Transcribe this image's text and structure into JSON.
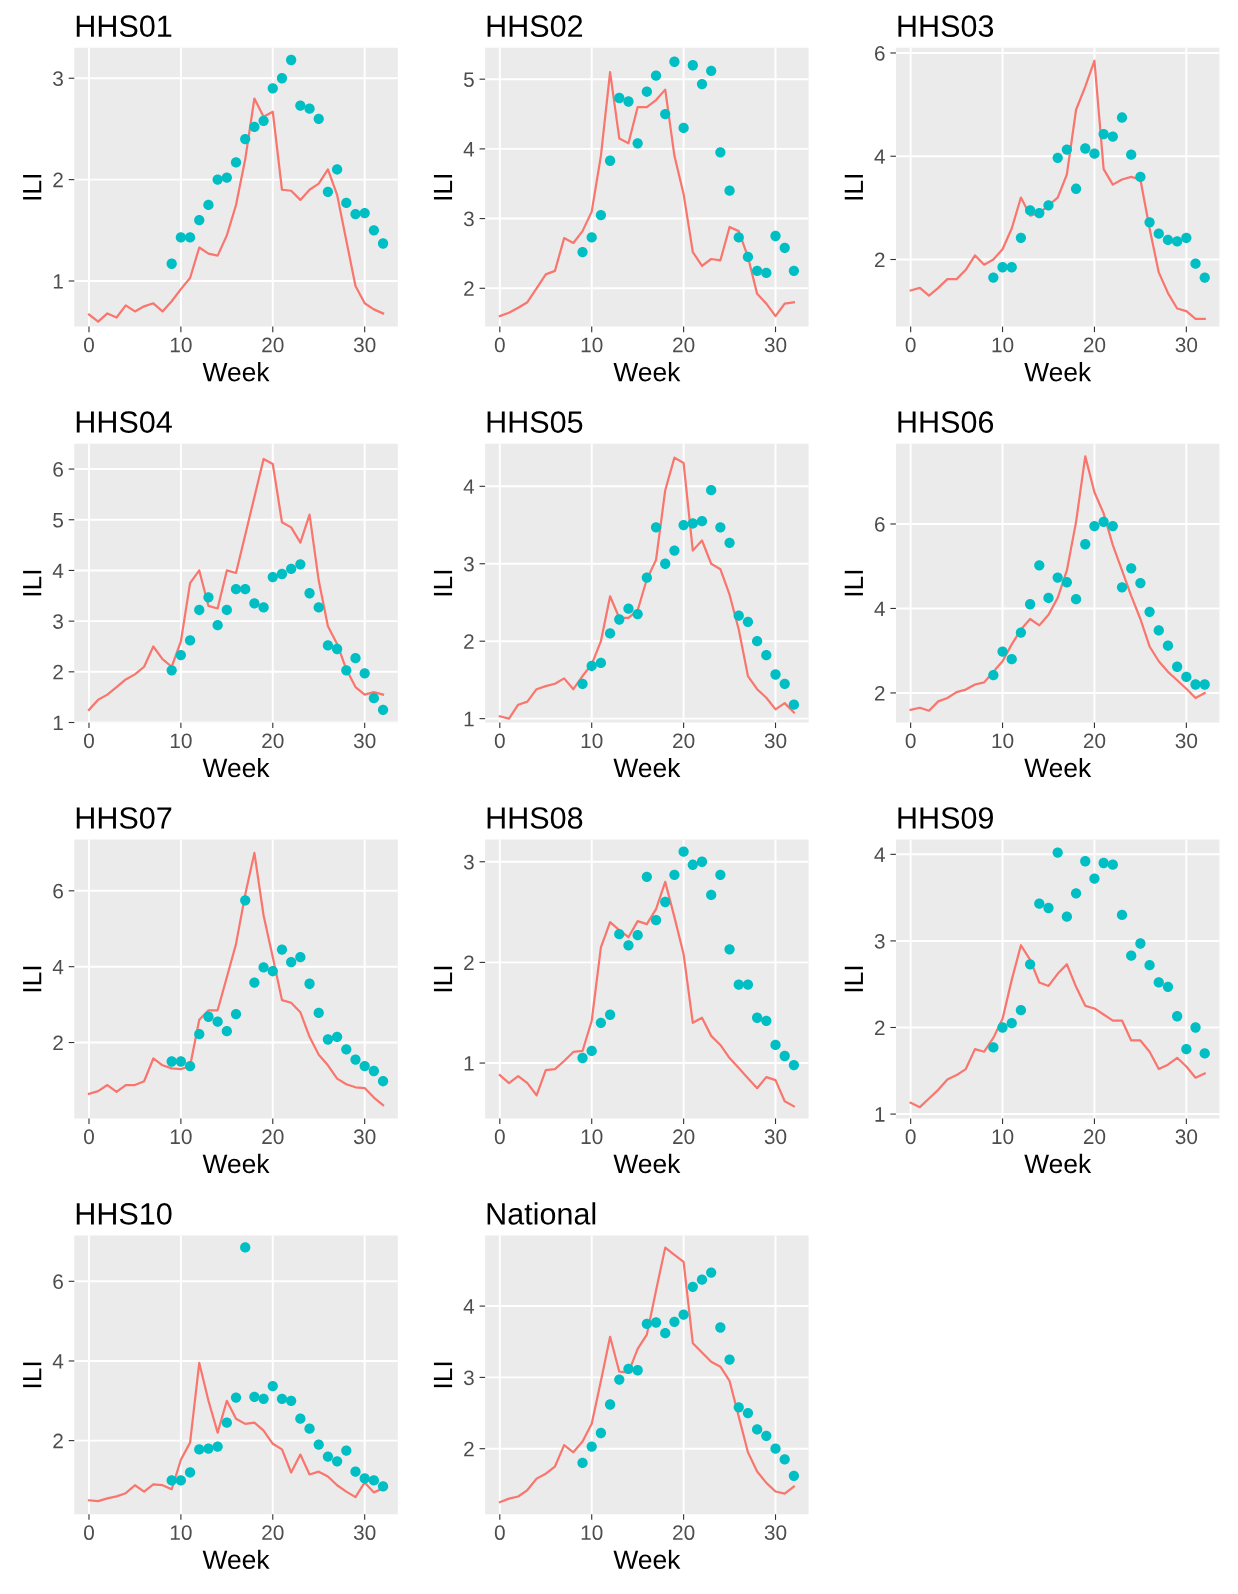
{
  "chart_data": [
    {
      "type": "line",
      "title": "HHS01",
      "xlabel": "Week",
      "ylabel": "ILI",
      "xlim": [
        -1.6,
        33.6
      ],
      "xticks": [
        0,
        10,
        20,
        30
      ],
      "ylim": [
        0.55,
        3.3
      ],
      "yticks": [
        1,
        2,
        3
      ],
      "grid": true,
      "series": [
        {
          "type": "line",
          "color": "#f8766d",
          "x": [
            0,
            1,
            2,
            3,
            4,
            5,
            6,
            7,
            8,
            9,
            10,
            11,
            12,
            13,
            14,
            15,
            16,
            17,
            18,
            19,
            20,
            21,
            22,
            23,
            24,
            25,
            26,
            27,
            28,
            29,
            30,
            31,
            32
          ],
          "values": [
            0.67,
            0.6,
            0.68,
            0.64,
            0.76,
            0.7,
            0.75,
            0.78,
            0.7,
            0.8,
            0.92,
            1.03,
            1.33,
            1.27,
            1.25,
            1.45,
            1.75,
            2.2,
            2.8,
            2.62,
            2.67,
            1.9,
            1.89,
            1.8,
            1.9,
            1.96,
            2.1,
            1.85,
            1.4,
            0.95,
            0.78,
            0.72,
            0.68
          ]
        },
        {
          "type": "scatter",
          "color": "#00bfc4",
          "marker": "circle",
          "x": [
            9,
            10,
            11,
            12,
            13,
            14,
            15,
            16,
            17,
            18,
            19,
            20,
            21,
            22,
            23,
            24,
            25,
            26,
            27,
            28,
            29,
            30,
            31,
            32
          ],
          "values": [
            1.17,
            1.43,
            1.43,
            1.6,
            1.75,
            2.0,
            2.02,
            2.17,
            2.4,
            2.52,
            2.58,
            2.9,
            3.0,
            3.18,
            2.73,
            2.7,
            2.6,
            1.88,
            2.1,
            1.77,
            1.66,
            1.67,
            1.5,
            1.37
          ]
        }
      ]
    },
    {
      "type": "line",
      "title": "HHS02",
      "xlabel": "Week",
      "ylabel": "ILI",
      "xlim": [
        -1.6,
        33.6
      ],
      "xticks": [
        0,
        10,
        20,
        30
      ],
      "ylim": [
        1.45,
        5.45
      ],
      "yticks": [
        2,
        3,
        4,
        5
      ],
      "grid": true,
      "series": [
        {
          "type": "line",
          "color": "#f8766d",
          "x": [
            0,
            1,
            2,
            3,
            4,
            5,
            6,
            7,
            8,
            9,
            10,
            11,
            12,
            13,
            14,
            15,
            16,
            17,
            18,
            19,
            20,
            21,
            22,
            23,
            24,
            25,
            26,
            27,
            28,
            29,
            30,
            31,
            32
          ],
          "values": [
            1.6,
            1.65,
            1.72,
            1.8,
            2.0,
            2.2,
            2.25,
            2.72,
            2.65,
            2.82,
            3.1,
            3.9,
            5.1,
            4.15,
            4.08,
            4.6,
            4.6,
            4.7,
            4.85,
            3.9,
            3.35,
            2.52,
            2.32,
            2.42,
            2.4,
            2.88,
            2.82,
            2.45,
            1.92,
            1.78,
            1.6,
            1.78,
            1.8
          ]
        },
        {
          "type": "scatter",
          "color": "#00bfc4",
          "marker": "circle",
          "x": [
            9,
            10,
            11,
            12,
            13,
            14,
            15,
            16,
            17,
            18,
            19,
            20,
            21,
            22,
            23,
            24,
            25,
            26,
            27,
            28,
            29,
            30,
            31,
            32
          ],
          "values": [
            2.52,
            2.73,
            3.05,
            3.83,
            4.73,
            4.68,
            4.08,
            4.82,
            5.05,
            4.5,
            5.25,
            4.3,
            5.2,
            4.93,
            5.12,
            3.95,
            3.4,
            2.73,
            2.45,
            2.25,
            2.22,
            2.75,
            2.58,
            2.25
          ]
        }
      ]
    },
    {
      "type": "line",
      "title": "HHS03",
      "xlabel": "Week",
      "ylabel": "ILI",
      "xlim": [
        -1.6,
        33.6
      ],
      "xticks": [
        0,
        10,
        20,
        30
      ],
      "ylim": [
        0.7,
        6.1
      ],
      "yticks": [
        2,
        4,
        6
      ],
      "grid": true,
      "series": [
        {
          "type": "line",
          "color": "#f8766d",
          "x": [
            0,
            1,
            2,
            3,
            4,
            5,
            6,
            7,
            8,
            9,
            10,
            11,
            12,
            13,
            14,
            15,
            16,
            17,
            18,
            19,
            20,
            21,
            22,
            23,
            24,
            25,
            26,
            27,
            28,
            29,
            30,
            31,
            32
          ],
          "values": [
            1.4,
            1.45,
            1.3,
            1.45,
            1.62,
            1.62,
            1.8,
            2.08,
            1.9,
            2.0,
            2.2,
            2.6,
            3.2,
            2.85,
            2.9,
            3.05,
            3.2,
            3.65,
            4.9,
            5.35,
            5.85,
            3.75,
            3.45,
            3.55,
            3.6,
            3.55,
            2.6,
            1.75,
            1.35,
            1.05,
            1.0,
            0.85,
            0.85
          ]
        },
        {
          "type": "scatter",
          "color": "#00bfc4",
          "marker": "circle",
          "x": [
            9,
            10,
            11,
            12,
            13,
            14,
            15,
            16,
            17,
            18,
            19,
            20,
            21,
            22,
            23,
            24,
            25,
            26,
            27,
            28,
            29,
            30,
            31,
            32
          ],
          "values": [
            1.65,
            1.85,
            1.85,
            2.42,
            2.95,
            2.9,
            3.05,
            3.97,
            4.13,
            3.37,
            4.15,
            4.05,
            4.43,
            4.38,
            4.75,
            4.03,
            3.6,
            2.72,
            2.5,
            2.38,
            2.35,
            2.42,
            1.92,
            1.65
          ]
        }
      ]
    },
    {
      "type": "line",
      "title": "HHS04",
      "xlabel": "Week",
      "ylabel": "ILI",
      "xlim": [
        -1.6,
        33.6
      ],
      "xticks": [
        0,
        10,
        20,
        30
      ],
      "ylim": [
        1.0,
        6.5
      ],
      "yticks": [
        1,
        2,
        3,
        4,
        5,
        6
      ],
      "grid": true,
      "series": [
        {
          "type": "line",
          "color": "#f8766d",
          "x": [
            0,
            1,
            2,
            3,
            4,
            5,
            6,
            7,
            8,
            9,
            10,
            11,
            12,
            13,
            14,
            15,
            16,
            17,
            18,
            19,
            20,
            21,
            22,
            23,
            24,
            25,
            26,
            27,
            28,
            29,
            30,
            31,
            32
          ],
          "values": [
            1.25,
            1.45,
            1.55,
            1.7,
            1.85,
            1.95,
            2.1,
            2.5,
            2.25,
            2.1,
            2.6,
            3.75,
            4.0,
            3.3,
            3.25,
            4.0,
            3.95,
            4.7,
            5.45,
            6.2,
            6.1,
            4.95,
            4.85,
            4.55,
            5.1,
            3.8,
            2.9,
            2.55,
            2.05,
            1.7,
            1.55,
            1.6,
            1.55
          ]
        },
        {
          "type": "scatter",
          "color": "#00bfc4",
          "marker": "circle",
          "x": [
            9,
            10,
            11,
            12,
            13,
            14,
            15,
            16,
            17,
            18,
            19,
            20,
            21,
            22,
            23,
            24,
            25,
            26,
            27,
            28,
            29,
            30,
            31,
            32
          ],
          "values": [
            2.03,
            2.33,
            2.62,
            3.22,
            3.47,
            2.92,
            3.22,
            3.63,
            3.63,
            3.35,
            3.27,
            3.87,
            3.93,
            4.03,
            4.12,
            3.55,
            3.27,
            2.52,
            2.45,
            2.03,
            2.27,
            1.97,
            1.48,
            1.25
          ]
        }
      ]
    },
    {
      "type": "line",
      "title": "HHS05",
      "xlabel": "Week",
      "ylabel": "ILI",
      "xlim": [
        -1.6,
        33.6
      ],
      "xticks": [
        0,
        10,
        20,
        30
      ],
      "ylim": [
        0.95,
        4.55
      ],
      "yticks": [
        1,
        2,
        3,
        4
      ],
      "grid": true,
      "series": [
        {
          "type": "line",
          "color": "#f8766d",
          "x": [
            0,
            1,
            2,
            3,
            4,
            5,
            6,
            7,
            8,
            9,
            10,
            11,
            12,
            13,
            14,
            15,
            16,
            17,
            18,
            19,
            20,
            21,
            22,
            23,
            24,
            25,
            26,
            27,
            28,
            29,
            30,
            31,
            32
          ],
          "values": [
            1.03,
            1.0,
            1.18,
            1.22,
            1.38,
            1.42,
            1.45,
            1.52,
            1.38,
            1.55,
            1.7,
            2.0,
            2.58,
            2.3,
            2.3,
            2.4,
            2.8,
            3.05,
            3.95,
            4.37,
            4.3,
            3.17,
            3.3,
            3.0,
            2.93,
            2.6,
            2.15,
            1.55,
            1.38,
            1.27,
            1.12,
            1.2,
            1.08
          ]
        },
        {
          "type": "scatter",
          "color": "#00bfc4",
          "marker": "circle",
          "x": [
            9,
            10,
            11,
            12,
            13,
            14,
            15,
            16,
            17,
            18,
            19,
            20,
            21,
            22,
            23,
            24,
            25,
            26,
            27,
            28,
            29,
            30,
            31,
            32
          ],
          "values": [
            1.45,
            1.68,
            1.72,
            2.1,
            2.28,
            2.42,
            2.35,
            2.82,
            3.47,
            3.0,
            3.17,
            3.5,
            3.52,
            3.55,
            3.95,
            3.47,
            3.27,
            2.33,
            2.25,
            2.0,
            1.82,
            1.57,
            1.45,
            1.18
          ]
        }
      ]
    },
    {
      "type": "line",
      "title": "HHS06",
      "xlabel": "Week",
      "ylabel": "ILI",
      "xlim": [
        -1.6,
        33.6
      ],
      "xticks": [
        0,
        10,
        20,
        30
      ],
      "ylim": [
        1.3,
        7.9
      ],
      "yticks": [
        2,
        4,
        6
      ],
      "grid": true,
      "series": [
        {
          "type": "line",
          "color": "#f8766d",
          "x": [
            0,
            1,
            2,
            3,
            4,
            5,
            6,
            7,
            8,
            9,
            10,
            11,
            12,
            13,
            14,
            15,
            16,
            17,
            18,
            19,
            20,
            21,
            22,
            23,
            24,
            25,
            26,
            27,
            28,
            29,
            30,
            31,
            32
          ],
          "values": [
            1.6,
            1.65,
            1.58,
            1.8,
            1.88,
            2.02,
            2.08,
            2.2,
            2.25,
            2.5,
            2.75,
            3.15,
            3.5,
            3.75,
            3.6,
            3.85,
            4.25,
            4.9,
            6.05,
            7.6,
            6.75,
            6.25,
            5.5,
            4.9,
            4.3,
            3.75,
            3.1,
            2.75,
            2.5,
            2.3,
            2.1,
            1.88,
            2.0
          ]
        },
        {
          "type": "scatter",
          "color": "#00bfc4",
          "marker": "circle",
          "x": [
            9,
            10,
            11,
            12,
            13,
            14,
            15,
            16,
            17,
            18,
            19,
            20,
            21,
            22,
            23,
            24,
            25,
            26,
            27,
            28,
            29,
            30,
            31,
            32
          ],
          "values": [
            2.42,
            2.98,
            2.8,
            3.43,
            4.1,
            5.02,
            4.25,
            4.73,
            4.62,
            4.22,
            5.52,
            5.95,
            6.05,
            5.95,
            4.5,
            4.95,
            4.6,
            3.92,
            3.48,
            3.12,
            2.62,
            2.38,
            2.2,
            2.2
          ]
        }
      ]
    },
    {
      "type": "line",
      "title": "HHS07",
      "xlabel": "Week",
      "ylabel": "ILI",
      "xlim": [
        -1.6,
        33.6
      ],
      "xticks": [
        0,
        10,
        20,
        30
      ],
      "ylim": [
        0.0,
        7.35
      ],
      "yticks": [
        2,
        4,
        6
      ],
      "grid": true,
      "series": [
        {
          "type": "line",
          "color": "#f8766d",
          "x": [
            0,
            1,
            2,
            3,
            4,
            5,
            6,
            7,
            8,
            9,
            10,
            11,
            12,
            13,
            14,
            15,
            16,
            17,
            18,
            19,
            20,
            21,
            22,
            23,
            24,
            25,
            26,
            27,
            28,
            29,
            30,
            31,
            32
          ],
          "values": [
            0.65,
            0.72,
            0.88,
            0.7,
            0.88,
            0.88,
            0.98,
            1.58,
            1.4,
            1.32,
            1.3,
            1.38,
            2.6,
            2.85,
            2.85,
            3.72,
            4.6,
            5.9,
            7.0,
            5.35,
            4.25,
            3.12,
            3.05,
            2.8,
            2.15,
            1.68,
            1.4,
            1.05,
            0.9,
            0.82,
            0.8,
            0.55,
            0.35
          ]
        },
        {
          "type": "scatter",
          "color": "#00bfc4",
          "marker": "circle",
          "x": [
            9,
            10,
            11,
            12,
            13,
            14,
            15,
            16,
            17,
            18,
            19,
            20,
            21,
            22,
            23,
            24,
            25,
            26,
            27,
            28,
            29,
            30,
            31,
            32
          ],
          "values": [
            1.5,
            1.5,
            1.38,
            2.22,
            2.68,
            2.55,
            2.3,
            2.75,
            5.75,
            3.58,
            3.98,
            3.88,
            4.45,
            4.12,
            4.25,
            3.55,
            2.78,
            2.08,
            2.15,
            1.82,
            1.55,
            1.38,
            1.25,
            0.98
          ]
        }
      ]
    },
    {
      "type": "line",
      "title": "HHS08",
      "xlabel": "Week",
      "ylabel": "ILI",
      "xlim": [
        -1.6,
        33.6
      ],
      "xticks": [
        0,
        10,
        20,
        30
      ],
      "ylim": [
        0.45,
        3.22
      ],
      "yticks": [
        1,
        2,
        3
      ],
      "grid": true,
      "series": [
        {
          "type": "line",
          "color": "#f8766d",
          "x": [
            0,
            1,
            2,
            3,
            4,
            5,
            6,
            7,
            8,
            9,
            10,
            11,
            12,
            13,
            14,
            15,
            16,
            17,
            18,
            19,
            20,
            21,
            22,
            23,
            24,
            25,
            26,
            27,
            28,
            29,
            30,
            31,
            32
          ],
          "values": [
            0.88,
            0.8,
            0.87,
            0.8,
            0.68,
            0.93,
            0.94,
            1.02,
            1.11,
            1.12,
            1.42,
            2.15,
            2.4,
            2.32,
            2.25,
            2.41,
            2.38,
            2.53,
            2.8,
            2.45,
            2.08,
            1.4,
            1.45,
            1.27,
            1.18,
            1.05,
            0.95,
            0.85,
            0.75,
            0.86,
            0.83,
            0.62,
            0.57
          ]
        },
        {
          "type": "scatter",
          "color": "#00bfc4",
          "marker": "circle",
          "x": [
            9,
            10,
            11,
            12,
            13,
            14,
            15,
            16,
            17,
            18,
            19,
            20,
            21,
            22,
            23,
            24,
            25,
            26,
            27,
            28,
            29,
            30,
            31,
            32
          ],
          "values": [
            1.05,
            1.12,
            1.4,
            1.48,
            2.28,
            2.17,
            2.27,
            2.85,
            2.42,
            2.6,
            2.87,
            3.1,
            2.97,
            3.0,
            2.67,
            2.87,
            2.13,
            1.78,
            1.78,
            1.45,
            1.42,
            1.18,
            1.07,
            0.98
          ]
        }
      ]
    },
    {
      "type": "line",
      "title": "HHS09",
      "xlabel": "Week",
      "ylabel": "ILI",
      "xlim": [
        -1.6,
        33.6
      ],
      "xticks": [
        0,
        10,
        20,
        30
      ],
      "ylim": [
        0.95,
        4.17
      ],
      "yticks": [
        1,
        2,
        3,
        4
      ],
      "grid": true,
      "series": [
        {
          "type": "line",
          "color": "#f8766d",
          "x": [
            0,
            1,
            2,
            3,
            4,
            5,
            6,
            7,
            8,
            9,
            10,
            11,
            12,
            13,
            14,
            15,
            16,
            17,
            18,
            19,
            20,
            21,
            22,
            23,
            24,
            25,
            26,
            27,
            28,
            29,
            30,
            31,
            32
          ],
          "values": [
            1.13,
            1.08,
            1.18,
            1.28,
            1.4,
            1.45,
            1.52,
            1.75,
            1.72,
            1.88,
            2.1,
            2.55,
            2.95,
            2.78,
            2.52,
            2.48,
            2.62,
            2.73,
            2.47,
            2.25,
            2.22,
            2.15,
            2.08,
            2.08,
            1.85,
            1.85,
            1.72,
            1.52,
            1.57,
            1.65,
            1.55,
            1.42,
            1.47
          ]
        },
        {
          "type": "scatter",
          "color": "#00bfc4",
          "marker": "circle",
          "x": [
            9,
            10,
            11,
            12,
            13,
            14,
            15,
            16,
            17,
            18,
            19,
            20,
            21,
            22,
            23,
            24,
            25,
            26,
            27,
            28,
            29,
            30,
            31,
            32
          ],
          "values": [
            1.77,
            2.0,
            2.05,
            2.2,
            2.73,
            3.43,
            3.38,
            4.02,
            3.28,
            3.55,
            3.92,
            3.72,
            3.9,
            3.88,
            3.3,
            2.83,
            2.97,
            2.72,
            2.52,
            2.47,
            2.13,
            1.75,
            2.0,
            1.7
          ]
        }
      ]
    },
    {
      "type": "line",
      "title": "HHS10",
      "xlabel": "Week",
      "ylabel": "ILI",
      "xlim": [
        -1.6,
        33.6
      ],
      "xticks": [
        0,
        10,
        20,
        30
      ],
      "ylim": [
        0.15,
        7.15
      ],
      "yticks": [
        2,
        4,
        6
      ],
      "grid": true,
      "series": [
        {
          "type": "line",
          "color": "#f8766d",
          "x": [
            0,
            1,
            2,
            3,
            4,
            5,
            6,
            7,
            8,
            9,
            10,
            11,
            12,
            13,
            14,
            15,
            16,
            17,
            18,
            19,
            20,
            21,
            22,
            23,
            24,
            25,
            26,
            27,
            28,
            29,
            30,
            31,
            32
          ],
          "values": [
            0.5,
            0.48,
            0.55,
            0.6,
            0.68,
            0.88,
            0.72,
            0.9,
            0.88,
            0.78,
            1.52,
            1.95,
            3.95,
            3.0,
            2.2,
            3.0,
            2.55,
            2.42,
            2.45,
            2.25,
            1.92,
            1.78,
            1.2,
            1.65,
            1.15,
            1.22,
            1.1,
            0.88,
            0.72,
            0.58,
            0.95,
            0.7,
            0.8
          ]
        },
        {
          "type": "scatter",
          "color": "#00bfc4",
          "marker": "circle",
          "x": [
            9,
            10,
            11,
            12,
            13,
            14,
            15,
            16,
            17,
            18,
            19,
            20,
            21,
            22,
            23,
            24,
            25,
            26,
            27,
            28,
            29,
            30,
            31,
            32
          ],
          "values": [
            1.0,
            1.0,
            1.2,
            1.78,
            1.8,
            1.85,
            2.45,
            3.08,
            6.85,
            3.1,
            3.05,
            3.37,
            3.05,
            3.0,
            2.55,
            2.3,
            1.9,
            1.6,
            1.48,
            1.75,
            1.22,
            1.05,
            1.0,
            0.85
          ]
        }
      ]
    },
    {
      "type": "line",
      "title": "National",
      "xlabel": "Week",
      "ylabel": "ILI",
      "xlim": [
        -1.6,
        33.6
      ],
      "xticks": [
        0,
        10,
        20,
        30
      ],
      "ylim": [
        1.08,
        4.99
      ],
      "yticks": [
        2,
        3,
        4
      ],
      "grid": true,
      "series": [
        {
          "type": "line",
          "color": "#f8766d",
          "x": [
            0,
            1,
            2,
            3,
            4,
            5,
            6,
            7,
            8,
            9,
            10,
            11,
            12,
            13,
            14,
            15,
            16,
            17,
            18,
            19,
            20,
            21,
            22,
            23,
            24,
            25,
            26,
            27,
            28,
            29,
            30,
            31,
            32
          ],
          "values": [
            1.25,
            1.3,
            1.33,
            1.42,
            1.58,
            1.65,
            1.75,
            2.05,
            1.95,
            2.1,
            2.35,
            2.95,
            3.57,
            3.08,
            3.07,
            3.4,
            3.6,
            4.22,
            4.82,
            4.72,
            4.62,
            3.48,
            3.35,
            3.22,
            3.15,
            2.95,
            2.45,
            1.95,
            1.68,
            1.52,
            1.4,
            1.37,
            1.47
          ]
        },
        {
          "type": "scatter",
          "color": "#00bfc4",
          "marker": "circle",
          "x": [
            9,
            10,
            11,
            12,
            13,
            14,
            15,
            16,
            17,
            18,
            19,
            20,
            21,
            22,
            23,
            24,
            25,
            26,
            27,
            28,
            29,
            30,
            31,
            32
          ],
          "values": [
            1.8,
            2.03,
            2.22,
            2.62,
            2.97,
            3.12,
            3.1,
            3.75,
            3.77,
            3.62,
            3.78,
            3.88,
            4.27,
            4.37,
            4.47,
            3.7,
            3.25,
            2.58,
            2.5,
            2.27,
            2.18,
            2.0,
            1.85,
            1.62
          ]
        }
      ]
    }
  ]
}
